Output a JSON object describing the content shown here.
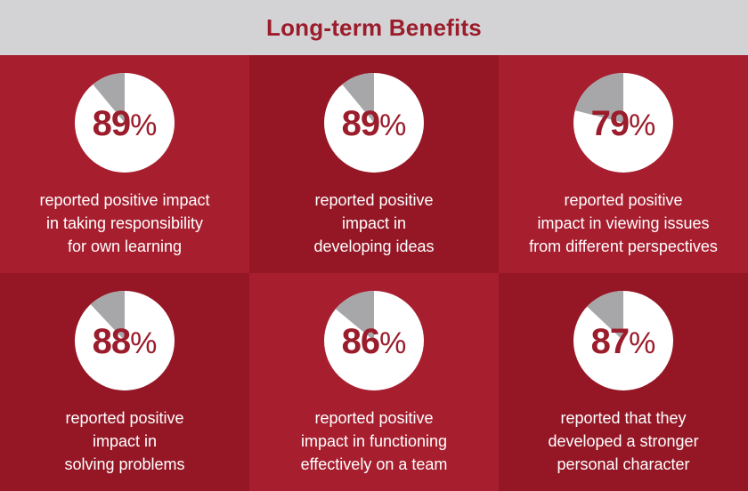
{
  "title": "Long-term Benefits",
  "colors": {
    "header_bg": "#d3d3d5",
    "title": "#9b1c2b",
    "panel_light": "#a71e2f",
    "panel_dark": "#951726",
    "pie_main": "#ffffff",
    "pie_rest": "#a7a7aa",
    "caption": "#ffffff"
  },
  "chart_data": {
    "type": "pie",
    "title": "Long-term Benefits",
    "unit": "%",
    "panels": [
      {
        "value": 89,
        "label": "89",
        "caption_lines": [
          "reported positive impact",
          "in taking responsibility",
          "for own learning"
        ]
      },
      {
        "value": 89,
        "label": "89",
        "caption_lines": [
          "reported positive",
          "impact in",
          "developing ideas"
        ]
      },
      {
        "value": 79,
        "label": "79",
        "caption_lines": [
          "reported positive",
          "impact in viewing issues",
          "from different perspectives"
        ]
      },
      {
        "value": 88,
        "label": "88",
        "caption_lines": [
          "reported positive",
          "impact in",
          "solving problems"
        ]
      },
      {
        "value": 86,
        "label": "86",
        "caption_lines": [
          "reported positive",
          "impact in functioning",
          "effectively on a team"
        ]
      },
      {
        "value": 87,
        "label": "87",
        "caption_lines": [
          "reported that they",
          "developed a stronger",
          "personal character"
        ]
      }
    ]
  }
}
